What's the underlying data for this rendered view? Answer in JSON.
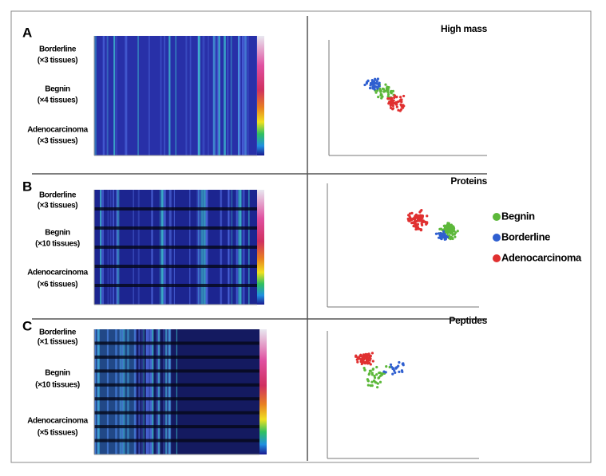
{
  "panels": [
    {
      "label": "A",
      "title": "High mass",
      "groups": [
        {
          "name": "Borderline",
          "count": "(×3 tissues)"
        },
        {
          "name": "Begnin",
          "count": "(×4 tissues)"
        },
        {
          "name": "Adenocarcinoma",
          "count": "(×3 tissues)"
        }
      ]
    },
    {
      "label": "B",
      "title": "Proteins",
      "groups": [
        {
          "name": "Borderline",
          "count": "(×3 tissues)"
        },
        {
          "name": "Begnin",
          "count": "(×10 tissues)"
        },
        {
          "name": "Adenocarcinoma",
          "count": "(×6 tissues)"
        }
      ]
    },
    {
      "label": "C",
      "title": "Peptides",
      "groups": [
        {
          "name": "Borderline",
          "count": "(×1 tissues)"
        },
        {
          "name": "Begnin",
          "count": "(×10 tissues)"
        },
        {
          "name": "Adenocarcinoma",
          "count": "(×5 tissues)"
        }
      ]
    }
  ],
  "legend": [
    {
      "name": "Begnin",
      "color": "#5cb83a"
    },
    {
      "name": "Borderline",
      "color": "#2f5fd0"
    },
    {
      "name": "Adenocarcinoma",
      "color": "#e03030"
    }
  ]
}
